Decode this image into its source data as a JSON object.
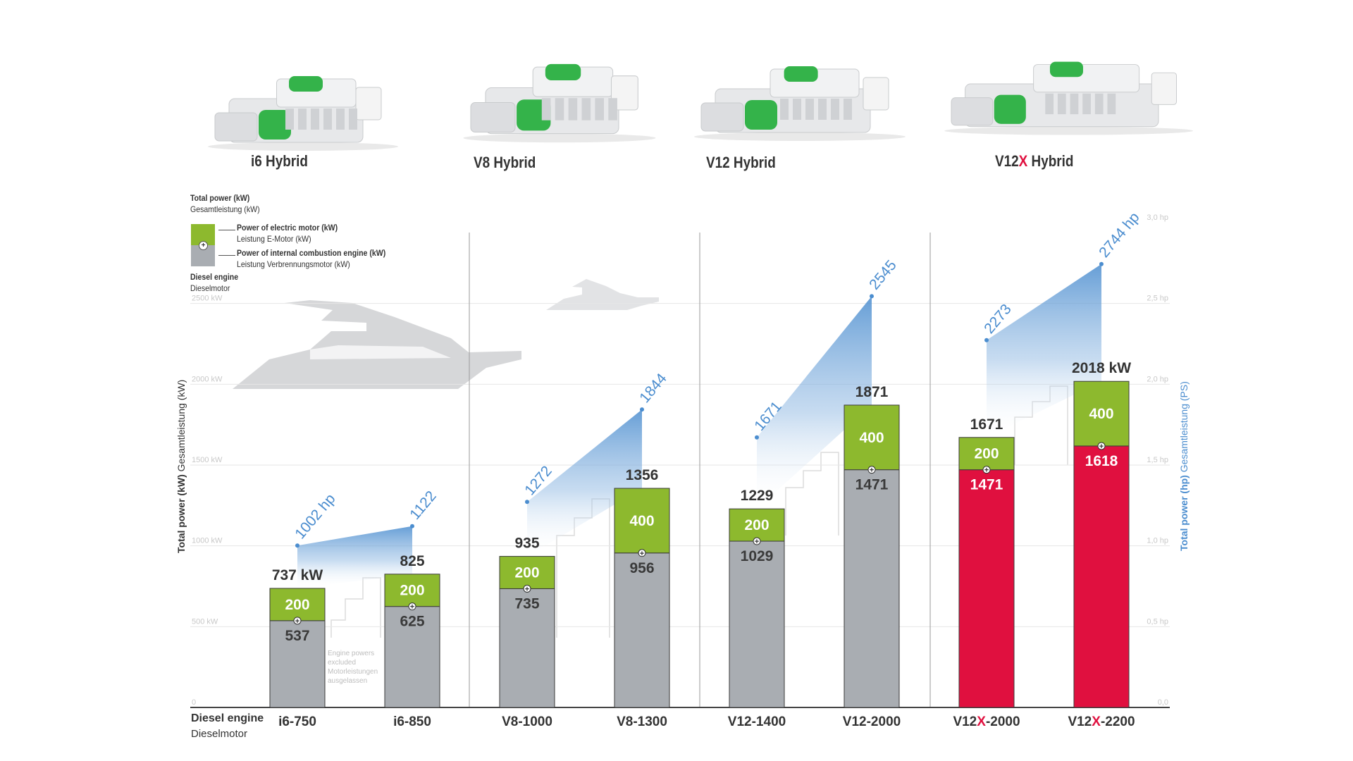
{
  "engines": [
    {
      "name": "i6 Hybrid",
      "prefix": "i6",
      "suffix": " Hybrid"
    },
    {
      "name": "V8 Hybrid",
      "prefix": "V8",
      "suffix": " Hybrid"
    },
    {
      "name": "V12 Hybrid",
      "prefix": "V12",
      "suffix": " Hybrid"
    },
    {
      "name": "V12X Hybrid",
      "prefix": "V12",
      "highlight": "X",
      "suffix": " Hybrid"
    }
  ],
  "legend": {
    "total_en": "Total power (kW)",
    "total_de": "Gesamtleistung (kW)",
    "electric_en": "Power of electric motor (kW)",
    "electric_de": "Leistung E-Motor (kW)",
    "ice_en": "Power of internal combustion engine (kW)",
    "ice_de": "Leistung Verbrennungsmotor (kW)",
    "diesel_en": "Diesel engine",
    "diesel_de": "Dieselmotor"
  },
  "colors": {
    "electric": "#8db92e",
    "diesel": "#a9adb2",
    "v12x_diesel": "#e0103f",
    "hp_blue": "#4b8dcf",
    "text_dark": "#333333"
  },
  "chart_data": {
    "type": "bar",
    "subtype": "stacked bar with horsepower line overlay",
    "categories": [
      "i6-750",
      "i6-850",
      "V8-1000",
      "V8-1300",
      "V12-1400",
      "V12-2000",
      "V12X-2000",
      "V12X-2200"
    ],
    "category_parts": [
      {
        "prefix": "i6-750"
      },
      {
        "prefix": "i6-850"
      },
      {
        "prefix": "V8-1000"
      },
      {
        "prefix": "V8-1300"
      },
      {
        "prefix": "V12-1400"
      },
      {
        "prefix": "V12-2000"
      },
      {
        "prefix": "V12",
        "highlight": "X",
        "suffix": "-2000"
      },
      {
        "prefix": "V12",
        "highlight": "X",
        "suffix": "-2200"
      }
    ],
    "series": [
      {
        "name": "Power of internal combustion engine (kW)",
        "values": [
          537,
          625,
          735,
          956,
          1029,
          1471,
          1471,
          1618
        ]
      },
      {
        "name": "Power of electric motor (kW)",
        "values": [
          200,
          200,
          200,
          400,
          200,
          400,
          200,
          400
        ]
      }
    ],
    "totals_kw": [
      737,
      825,
      935,
      1356,
      1229,
      1871,
      1671,
      2018
    ],
    "total_labels": [
      "737 kW",
      "825",
      "935",
      "1356",
      "1229",
      "1871",
      "1671",
      "2018 kW"
    ],
    "total_hp": [
      1002,
      1122,
      1272,
      1844,
      1671,
      2545,
      2273,
      2744
    ],
    "hp_labels": [
      "1002 hp",
      "1122",
      "1272",
      "1844",
      "1671",
      "2545",
      "2273",
      "2744 hp"
    ],
    "groups": [
      [
        0,
        1
      ],
      [
        2,
        3
      ],
      [
        4,
        5
      ],
      [
        6,
        7
      ]
    ],
    "ylabel_left": "Total power (kW) Gesamtleistung (kW)",
    "ylabel_left_parts": [
      "Total power (kW)",
      " Gesamtleistung (kW)"
    ],
    "ylabel_right": "Total power (hp) Gesamtleistung (PS)",
    "ylabel_right_parts": [
      "Total power (hp)",
      " Gesamtleistung (PS)"
    ],
    "ylim_kw": [
      0,
      3000
    ],
    "ylim_hp": [
      0,
      3000
    ],
    "left_ticks": [
      "0",
      "500 kW",
      "1000 kW",
      "1500 kW",
      "2000 kW",
      "2500 kW"
    ],
    "left_tick_values": [
      0,
      500,
      1000,
      1500,
      2000,
      2500
    ],
    "right_ticks": [
      "0,0",
      "0,5 hp",
      "1,0 hp",
      "1,5 hp",
      "2,0 hp",
      "2,5 hp",
      "3,0 hp"
    ],
    "right_tick_values": [
      0,
      500,
      1000,
      1500,
      2000,
      2500,
      3000
    ],
    "axis_label_en": "Diesel engine",
    "axis_label_de": "Dieselmotor",
    "annotation": [
      "Engine powers",
      "excluded",
      "Motorleistungen",
      "ausgelassen"
    ],
    "grid": true
  }
}
